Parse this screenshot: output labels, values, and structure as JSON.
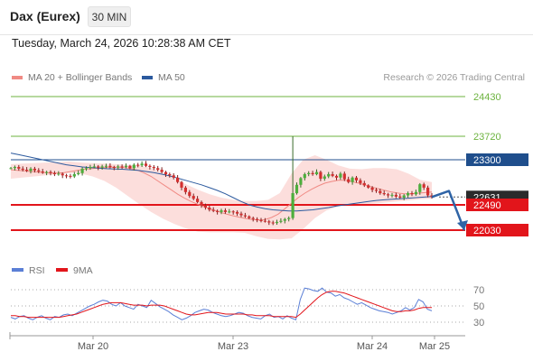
{
  "header": {
    "instrument": "Dax (Eurex)",
    "timeframe": "30 MIN",
    "datetime": "Tuesday, March 24, 2026 10:28:38 AM CET"
  },
  "legend": {
    "items": [
      {
        "label": "MA 20 + Bollinger Bands",
        "color": "#f08a84"
      },
      {
        "label": "MA 50",
        "color": "#2c5a9e"
      }
    ],
    "credit": "Research © 2026 Trading Central"
  },
  "rsi_legend": {
    "items": [
      {
        "label": "RSI",
        "color": "#5b7fd6"
      },
      {
        "label": "9MA",
        "color": "#e2151b"
      }
    ]
  },
  "chart_data": [
    {
      "type": "candlestick",
      "title": "Dax (Eurex) 30 MIN",
      "x_ticks": [
        "Mar 20",
        "Mar 23",
        "Mar 24",
        "Mar 25"
      ],
      "levels": [
        {
          "label": "24430",
          "value": 24430,
          "kind": "target",
          "color": "#6db33f"
        },
        {
          "label": "23720",
          "value": 23720,
          "kind": "target",
          "color": "#6db33f"
        },
        {
          "label": "23300",
          "value": 23300,
          "kind": "pivot",
          "color": "#1f4e8c"
        },
        {
          "label": "22631",
          "value": 22631,
          "kind": "last-price",
          "color": "#333333"
        },
        {
          "label": "22490",
          "value": 22490,
          "kind": "support",
          "color": "#e2151b"
        },
        {
          "label": "22030",
          "value": 22030,
          "kind": "support",
          "color": "#e2151b"
        }
      ],
      "price_path_close": [
        23150,
        23170,
        23140,
        23120,
        23100,
        23140,
        23110,
        23090,
        23070,
        23080,
        23060,
        23040,
        23050,
        23020,
        23010,
        23000,
        23040,
        23060,
        23140,
        23150,
        23170,
        23180,
        23160,
        23180,
        23190,
        23170,
        23160,
        23180,
        23170,
        23190,
        23150,
        23210,
        23200,
        23230,
        23190,
        23170,
        23150,
        23120,
        23080,
        23040,
        23020,
        22980,
        22900,
        22800,
        22720,
        22650,
        22600,
        22540,
        22480,
        22440,
        22400,
        22380,
        22360,
        22390,
        22360,
        22370,
        22360,
        22330,
        22300,
        22280,
        22250,
        22230,
        22210,
        22200,
        22190,
        22170,
        22160,
        22180,
        22200,
        22230,
        22250,
        22700,
        22850,
        22970,
        23040,
        23060,
        23040,
        23080,
        22960,
        23000,
        23040,
        23010,
        22980,
        23050,
        22950,
        22900,
        22980,
        22930,
        22880,
        22840,
        22800,
        22760,
        22740,
        22700,
        22680,
        22660,
        22670,
        22640,
        22620,
        22660,
        22700,
        22680,
        22720,
        22860,
        22800,
        22660,
        22631
      ],
      "spike": {
        "high": 23720,
        "index": 71
      },
      "forecast_path": [
        22631,
        22740,
        22030
      ],
      "ma20": [
        23120,
        23110,
        23100,
        23090,
        23080,
        23070,
        23060,
        23060,
        23070,
        23090,
        23110,
        23130,
        23140,
        23150,
        23160,
        23165,
        23165,
        23160,
        23140,
        23110,
        23060,
        23000,
        22920,
        22840,
        22760,
        22680,
        22610,
        22550,
        22500,
        22450,
        22410,
        22370,
        22330,
        22300,
        22270,
        22245,
        22225,
        22215,
        22220,
        22260,
        22320,
        22420,
        22520,
        22620,
        22700,
        22770,
        22830,
        22880,
        22910,
        22930,
        22930,
        22910,
        22880,
        22850,
        22810,
        22780,
        22750,
        22720,
        22700,
        22690,
        22690,
        22700,
        22710,
        22720
      ],
      "ma50": [
        23420,
        23390,
        23360,
        23330,
        23300,
        23270,
        23240,
        23210,
        23190,
        23170,
        23160,
        23150,
        23140,
        23135,
        23130,
        23120,
        23110,
        23090,
        23070,
        23040,
        23010,
        22970,
        22930,
        22890,
        22850,
        22800,
        22750,
        22690,
        22620,
        22550,
        22490,
        22450,
        22420,
        22400,
        22390,
        22380,
        22380,
        22390,
        22400,
        22420,
        22440,
        22470,
        22490,
        22510,
        22530,
        22550,
        22570,
        22580,
        22590,
        22600,
        22610,
        22620,
        22630,
        22640
      ],
      "bb_upper": [
        23220,
        23230,
        23240,
        23250,
        23260,
        23270,
        23250,
        23240,
        23230,
        23220,
        23210,
        23200,
        23150,
        23060,
        22960,
        22860,
        22760,
        22680,
        22620,
        22580,
        22560,
        22560,
        22580,
        22700,
        23050,
        23300,
        23380,
        23300,
        23200,
        23140,
        23130,
        23150,
        23150,
        23130,
        23050,
        22940,
        22900
      ],
      "bb_lower": [
        22960,
        22980,
        23000,
        23020,
        23040,
        23060,
        23050,
        23000,
        22920,
        22800,
        22650,
        22500,
        22360,
        22240,
        22140,
        22060,
        22000,
        21990,
        21990,
        21990,
        21980,
        21920,
        21870,
        21860,
        21880,
        22050,
        22250,
        22390,
        22460,
        22490,
        22500,
        22510,
        22530,
        22550,
        22570,
        22590,
        22600
      ]
    },
    {
      "type": "line",
      "title": "RSI",
      "y_ticks": [
        70,
        50,
        30
      ],
      "ylim": [
        20,
        80
      ],
      "series": [
        {
          "name": "RSI",
          "color": "#5b7fd6",
          "values": [
            36,
            34,
            37,
            38,
            35,
            33,
            36,
            38,
            35,
            33,
            37,
            36,
            39,
            40,
            38,
            41,
            44,
            47,
            50,
            52,
            55,
            57,
            56,
            52,
            50,
            54,
            50,
            48,
            46,
            52,
            50,
            48,
            57,
            53,
            49,
            46,
            43,
            39,
            36,
            33,
            35,
            38,
            42,
            44,
            46,
            45,
            42,
            40,
            38,
            37,
            38,
            40,
            42,
            41,
            38,
            36,
            35,
            34,
            38,
            40,
            36,
            37,
            34,
            38,
            35,
            33,
            58,
            72,
            71,
            69,
            68,
            72,
            67,
            66,
            62,
            64,
            60,
            58,
            55,
            52,
            54,
            51,
            48,
            46,
            44,
            43,
            42,
            40,
            42,
            44,
            48,
            45,
            48,
            58,
            55,
            46,
            44
          ]
        },
        {
          "name": "9MA",
          "color": "#e2151b",
          "values": [
            38,
            38,
            37,
            37,
            36,
            36,
            36,
            36,
            36,
            36,
            36,
            36,
            37,
            38,
            39,
            40,
            42,
            44,
            46,
            48,
            50,
            52,
            53,
            54,
            54,
            54,
            53,
            52,
            51,
            51,
            51,
            50,
            51,
            51,
            51,
            50,
            48,
            46,
            44,
            42,
            40,
            39,
            39,
            40,
            41,
            42,
            42,
            42,
            41,
            40,
            40,
            40,
            40,
            40,
            39,
            39,
            38,
            38,
            38,
            38,
            37,
            37,
            37,
            37,
            37,
            36,
            40,
            45,
            50,
            55,
            60,
            64,
            67,
            68,
            68,
            67,
            66,
            64,
            62,
            60,
            58,
            56,
            54,
            52,
            50,
            48,
            46,
            44,
            43,
            43,
            44,
            44,
            45,
            47,
            48,
            48,
            48
          ]
        }
      ]
    }
  ]
}
